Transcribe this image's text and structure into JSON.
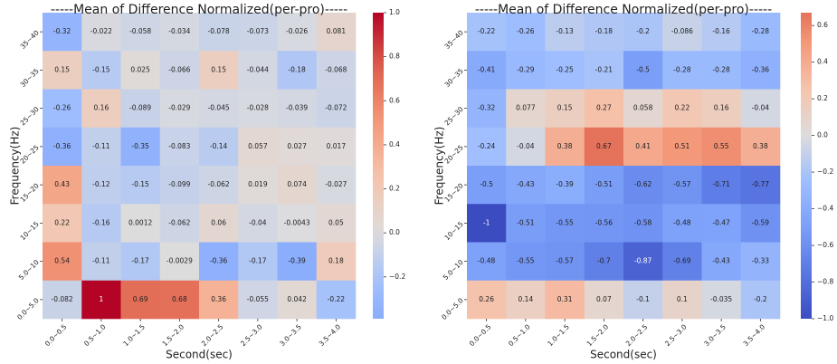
{
  "chart_data": [
    {
      "type": "heatmap",
      "title": "-----Mean of Difference Normalized(per-pro)-----",
      "xlabel": "Second(sec)",
      "ylabel": "Frequency(Hz)",
      "colormap": "coolwarm",
      "center": 0,
      "x": [
        "0.0~0.5",
        "0.5~1.0",
        "1.0~1.5",
        "1.5~2.0",
        "2.0~2.5",
        "2.5~3.0",
        "3.0~3.5",
        "3.5~4.0"
      ],
      "y": [
        "35~40",
        "30~35",
        "25~30",
        "20~25",
        "15~20",
        "10~15",
        "5.0~10",
        "0.0~5.0"
      ],
      "values": [
        [
          -0.32,
          -0.022,
          -0.058,
          -0.034,
          -0.078,
          -0.073,
          -0.026,
          0.081
        ],
        [
          0.15,
          -0.15,
          0.025,
          -0.066,
          0.15,
          -0.044,
          -0.18,
          -0.068
        ],
        [
          -0.26,
          0.16,
          -0.089,
          -0.029,
          -0.045,
          -0.028,
          -0.039,
          -0.072
        ],
        [
          -0.36,
          -0.11,
          -0.35,
          -0.083,
          -0.14,
          0.057,
          0.027,
          0.017
        ],
        [
          0.43,
          -0.12,
          -0.15,
          -0.099,
          -0.062,
          0.019,
          0.074,
          -0.027
        ],
        [
          0.22,
          -0.16,
          0.0012,
          -0.062,
          0.06,
          -0.04,
          -0.0043,
          0.05
        ],
        [
          0.54,
          -0.11,
          -0.17,
          -0.0029,
          -0.36,
          -0.17,
          -0.39,
          0.18
        ],
        [
          -0.082,
          1,
          0.69,
          0.68,
          0.36,
          -0.055,
          0.042,
          -0.22
        ]
      ],
      "clim": [
        -0.39,
        1
      ],
      "cticks": [
        {
          "value": 1,
          "label": "1.0"
        },
        0.8,
        0.6,
        0.4,
        0.2,
        {
          "value": 0,
          "label": "0.0"
        },
        {
          "value": -0.2,
          "label": "−0.2"
        }
      ]
    },
    {
      "type": "heatmap",
      "title": "-----Mean of Difference Normalized(per-pro)-----",
      "xlabel": "Second(sec)",
      "ylabel": "Frequency(Hz)",
      "colormap": "coolwarm",
      "center": 0,
      "x": [
        "0.0~0.5",
        "0.5~1.0",
        "1.0~1.5",
        "1.5~2.0",
        "2.0~2.5",
        "2.5~3.0",
        "3.0~3.5",
        "3.5~4.0"
      ],
      "y": [
        "35~40",
        "30~35",
        "25~30",
        "20~25",
        "15~20",
        "10~15",
        "5.0~10",
        "0.0~5.0"
      ],
      "values": [
        [
          -0.22,
          -0.26,
          -0.13,
          -0.18,
          -0.2,
          -0.086,
          -0.16,
          -0.28
        ],
        [
          -0.41,
          -0.29,
          -0.25,
          -0.21,
          -0.5,
          -0.28,
          -0.28,
          -0.36
        ],
        [
          -0.32,
          0.077,
          0.15,
          0.27,
          0.058,
          0.22,
          0.16,
          -0.04
        ],
        [
          -0.24,
          -0.04,
          0.38,
          0.67,
          0.41,
          0.51,
          0.55,
          0.38
        ],
        [
          -0.5,
          -0.43,
          -0.39,
          -0.51,
          -0.62,
          -0.57,
          -0.71,
          -0.77
        ],
        [
          -1,
          -0.51,
          -0.55,
          -0.56,
          -0.58,
          -0.48,
          -0.47,
          -0.59
        ],
        [
          -0.48,
          -0.55,
          -0.57,
          -0.7,
          -0.87,
          -0.69,
          -0.43,
          -0.33
        ],
        [
          0.26,
          0.14,
          0.31,
          0.07,
          -0.1,
          0.1,
          -0.035,
          -0.2
        ]
      ],
      "clim": [
        -1,
        0.67
      ],
      "cticks": [
        0.6,
        0.4,
        0.2,
        {
          "value": 0,
          "label": "0.0"
        },
        {
          "value": -0.2,
          "label": "−0.2"
        },
        {
          "value": -0.4,
          "label": "−0.4"
        },
        {
          "value": -0.6,
          "label": "−0.6"
        },
        {
          "value": -0.8,
          "label": "−0.8"
        },
        {
          "value": -1,
          "label": "−1.0"
        }
      ]
    }
  ]
}
